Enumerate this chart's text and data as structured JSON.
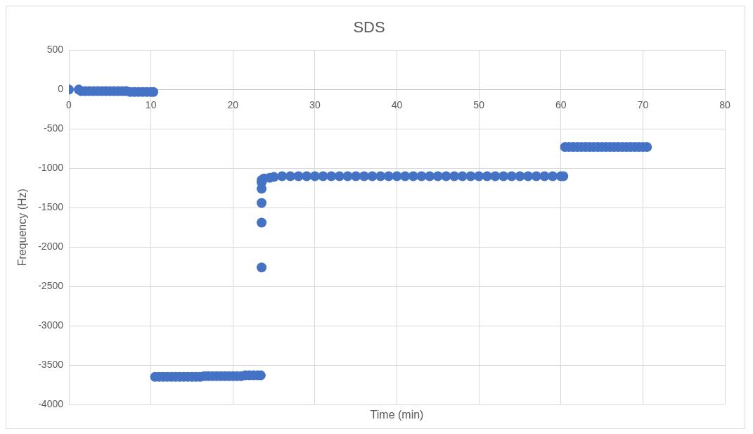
{
  "chart_data": {
    "type": "scatter",
    "title": "SDS",
    "xlabel": "Time (min)",
    "ylabel": "Frequency (Hz)",
    "x": [
      0,
      1.2,
      1.5,
      2,
      2.5,
      3,
      3.5,
      4,
      4.5,
      5,
      5.5,
      6,
      6.5,
      7,
      7.5,
      8,
      8.5,
      9,
      9.5,
      10,
      10.3,
      10.5,
      11,
      11.5,
      12,
      12.5,
      13,
      13.5,
      14,
      14.5,
      15,
      15.5,
      16,
      16.5,
      17,
      17.5,
      18,
      18.5,
      19,
      19.5,
      20,
      20.5,
      21,
      21.5,
      22,
      22.5,
      23,
      23.4,
      23.5,
      23.5,
      23.5,
      23.5,
      23.5,
      23.5,
      23.8,
      24.5,
      25,
      26,
      27,
      28,
      29,
      30,
      31,
      32,
      33,
      34,
      35,
      36,
      37,
      38,
      39,
      40,
      41,
      42,
      43,
      44,
      45,
      46,
      47,
      48,
      49,
      50,
      51,
      52,
      53,
      54,
      55,
      56,
      57,
      58,
      59,
      60,
      60.3,
      60.5,
      61,
      61.5,
      62,
      62.5,
      63,
      63.5,
      64,
      64.5,
      65,
      65.5,
      66,
      66.5,
      67,
      67.5,
      68,
      68.5,
      69,
      69.5,
      70,
      70.5
    ],
    "series": [
      {
        "color": "#4472c4",
        "values": [
          0,
          0,
          -20,
          -20,
          -20,
          -20,
          -20,
          -20,
          -20,
          -20,
          -20,
          -20,
          -20,
          -20,
          -30,
          -30,
          -30,
          -30,
          -30,
          -30,
          -30,
          -3650,
          -3650,
          -3650,
          -3650,
          -3650,
          -3650,
          -3650,
          -3650,
          -3650,
          -3650,
          -3650,
          -3650,
          -3640,
          -3640,
          -3640,
          -3640,
          -3640,
          -3640,
          -3640,
          -3640,
          -3640,
          -3640,
          -3630,
          -3630,
          -3630,
          -3630,
          -3630,
          -2260,
          -1690,
          -1440,
          -1260,
          -1180,
          -1150,
          -1130,
          -1120,
          -1110,
          -1100,
          -1100,
          -1100,
          -1100,
          -1100,
          -1100,
          -1100,
          -1100,
          -1100,
          -1100,
          -1100,
          -1100,
          -1100,
          -1100,
          -1100,
          -1100,
          -1100,
          -1100,
          -1100,
          -1100,
          -1100,
          -1100,
          -1100,
          -1100,
          -1100,
          -1100,
          -1100,
          -1100,
          -1100,
          -1100,
          -1100,
          -1100,
          -1100,
          -1100,
          -1100,
          -1100,
          -730,
          -730,
          -730,
          -730,
          -730,
          -730,
          -730,
          -730,
          -730,
          -730,
          -730,
          -730,
          -730,
          -730,
          -730,
          -730,
          -730,
          -730,
          -730,
          -730,
          -730
        ]
      }
    ],
    "xlim": [
      0,
      80
    ],
    "xticks": [
      0,
      10,
      20,
      30,
      40,
      50,
      60,
      70,
      80
    ],
    "ylim": [
      -4000,
      500
    ],
    "yticks": [
      -4000,
      -3500,
      -3000,
      -2500,
      -2000,
      -1500,
      -1000,
      -500,
      0,
      500
    ],
    "grid": true,
    "marker": "circle",
    "legend": false
  }
}
